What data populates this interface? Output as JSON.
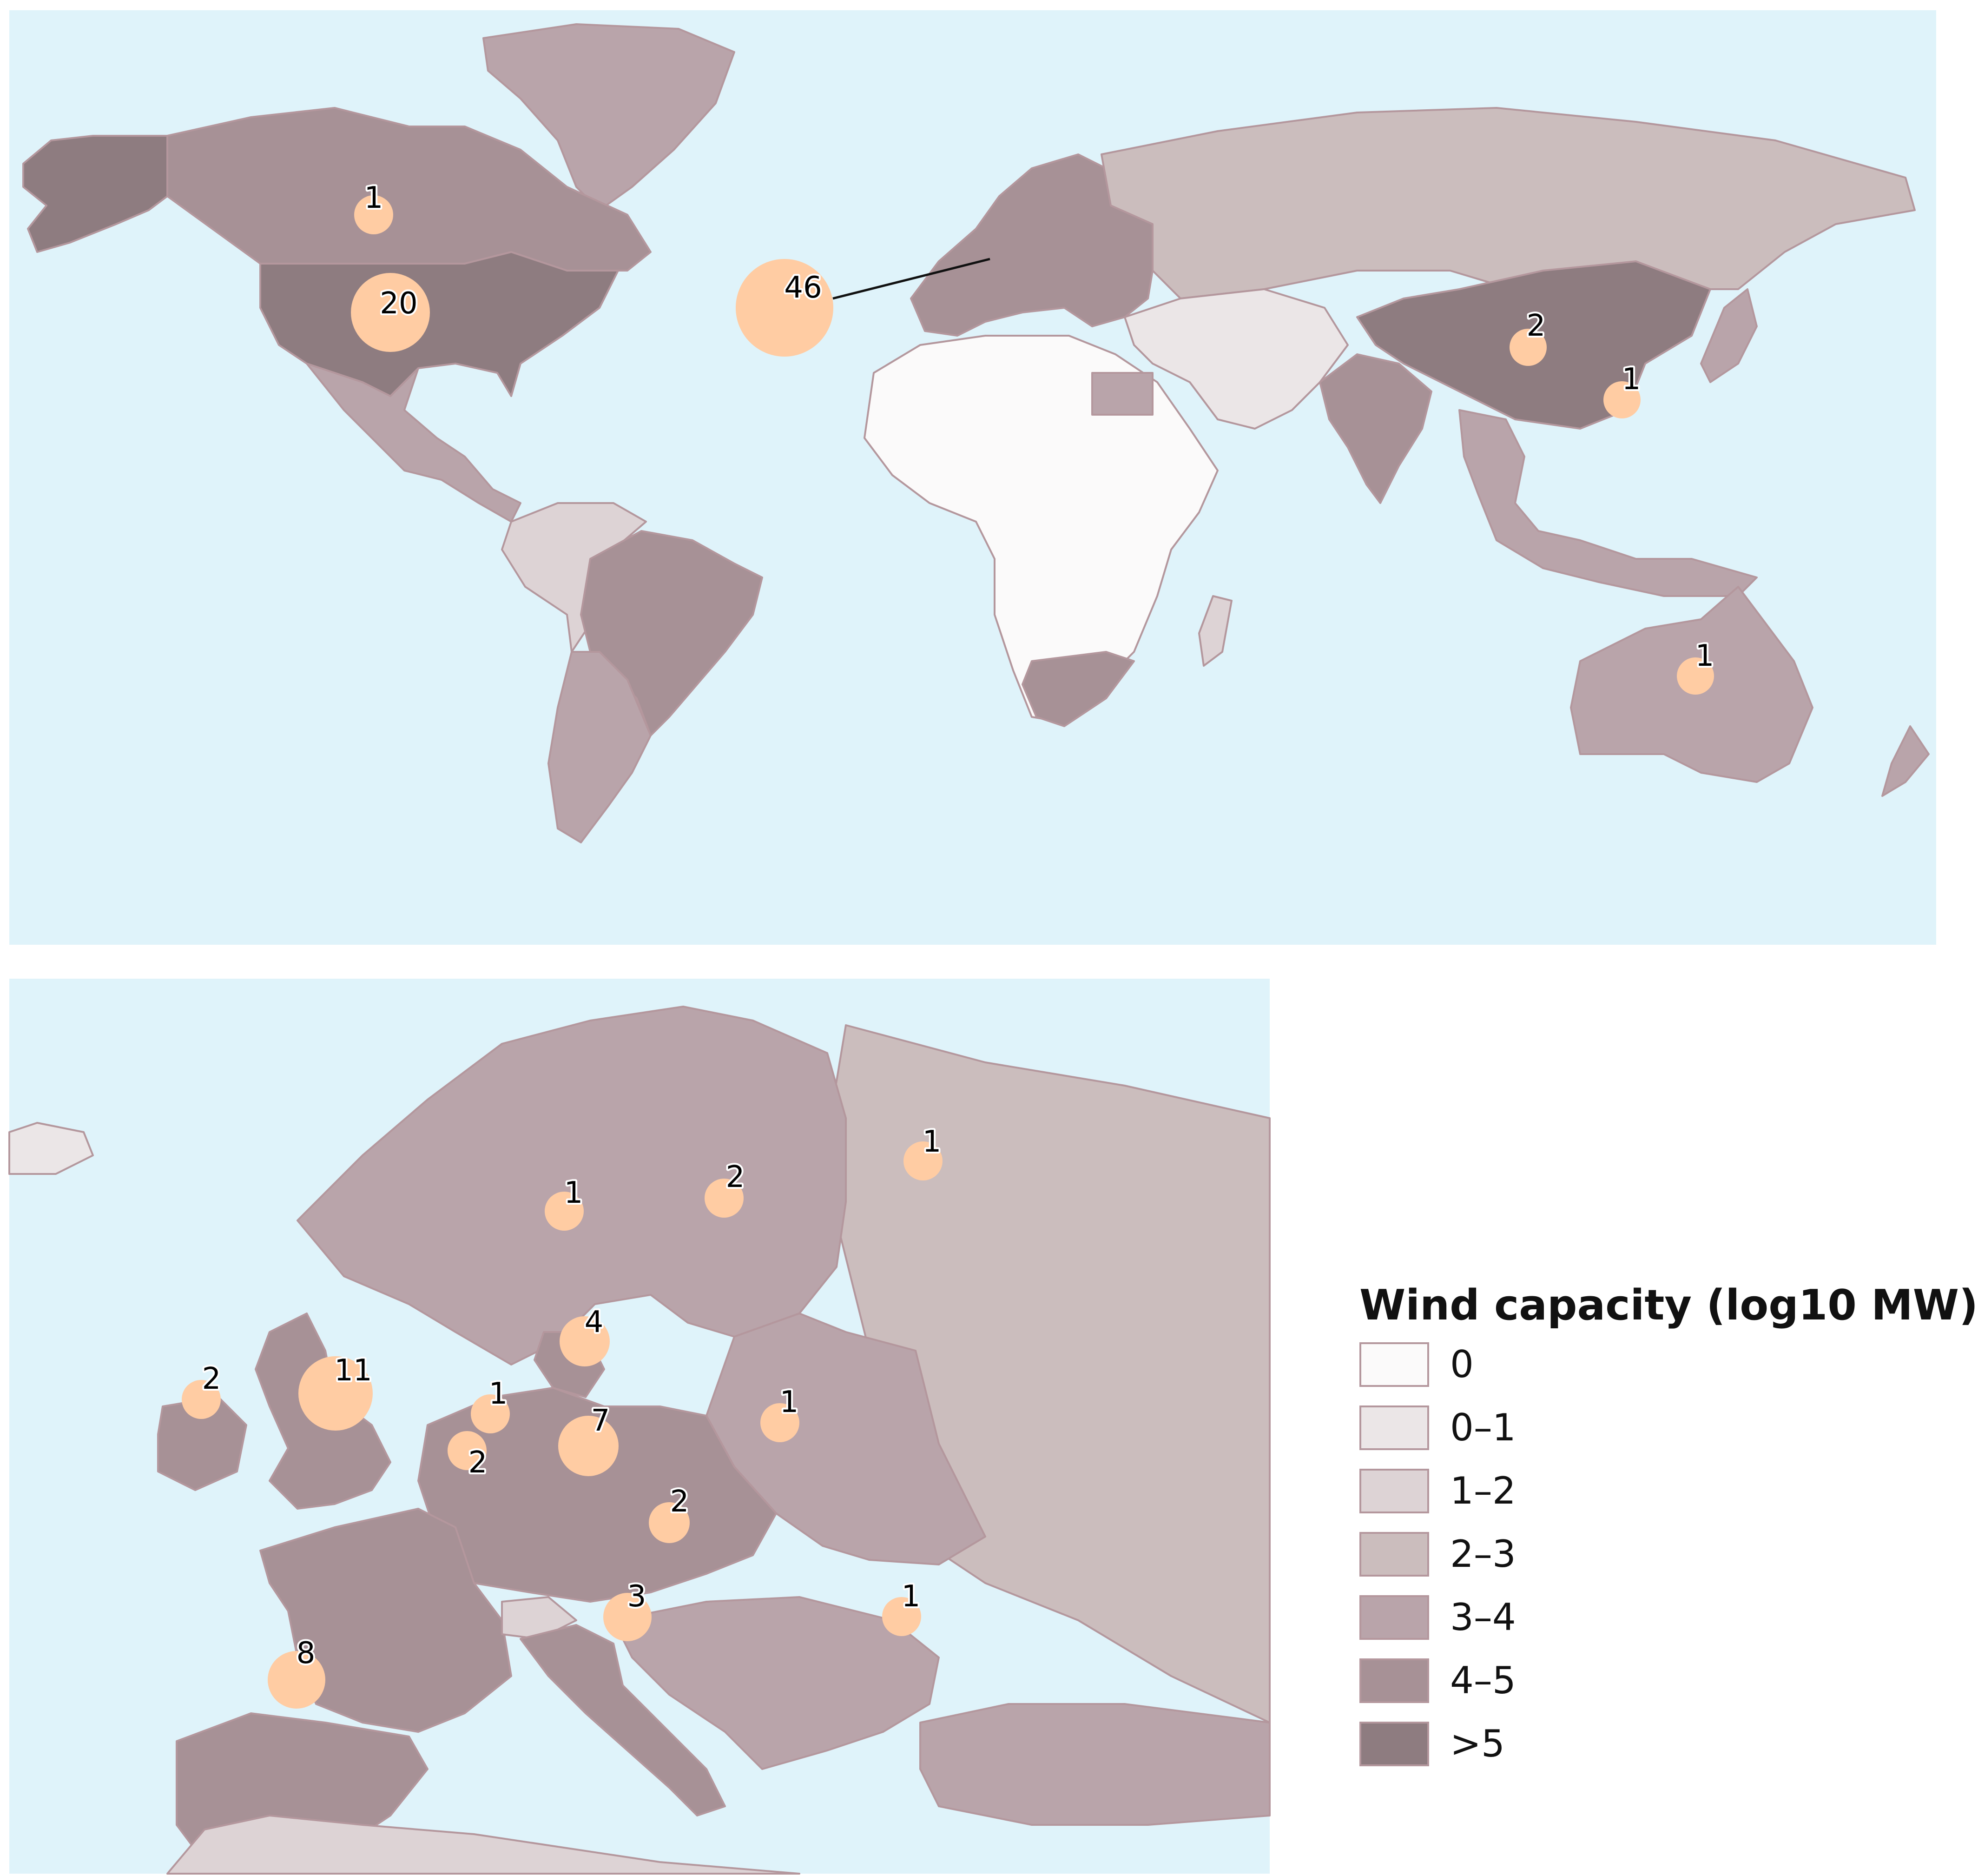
{
  "legend": {
    "title": "Wind capacity (log10 MW)",
    "classes": [
      {
        "label": "0",
        "color": "#fbfafa"
      },
      {
        "label": "0–1",
        "color": "#ebe6e7"
      },
      {
        "label": "1–2",
        "color": "#ddd3d5"
      },
      {
        "label": "2–3",
        "color": "#cbbdbd"
      },
      {
        "label": "3–4",
        "color": "#b9a4aa"
      },
      {
        "label": "4–5",
        "color": "#a79196"
      },
      {
        "label": ">5",
        "color": "#8e7c80"
      }
    ]
  },
  "world_map": {
    "sites": [
      {
        "region": "Canada",
        "count": "1"
      },
      {
        "region": "United States",
        "count": "20"
      },
      {
        "region": "Europe",
        "count": "46"
      },
      {
        "region": "China",
        "count": "2"
      },
      {
        "region": "Taiwan",
        "count": "1"
      },
      {
        "region": "Australia",
        "count": "1"
      }
    ]
  },
  "europe_map": {
    "sites": [
      {
        "region": "Norway",
        "count": "1"
      },
      {
        "region": "Sweden",
        "count": "2"
      },
      {
        "region": "Finland",
        "count": "1"
      },
      {
        "region": "Denmark",
        "count": "4"
      },
      {
        "region": "Ireland",
        "count": "2"
      },
      {
        "region": "United Kingdom",
        "count": "11"
      },
      {
        "region": "Netherlands",
        "count": "1"
      },
      {
        "region": "Belgium",
        "count": "2"
      },
      {
        "region": "Germany",
        "count": "7"
      },
      {
        "region": "Poland",
        "count": "1"
      },
      {
        "region": "Austria",
        "count": "2"
      },
      {
        "region": "Italy",
        "count": "3"
      },
      {
        "region": "Bulgaria",
        "count": "1"
      },
      {
        "region": "Spain",
        "count": "8"
      }
    ]
  }
}
